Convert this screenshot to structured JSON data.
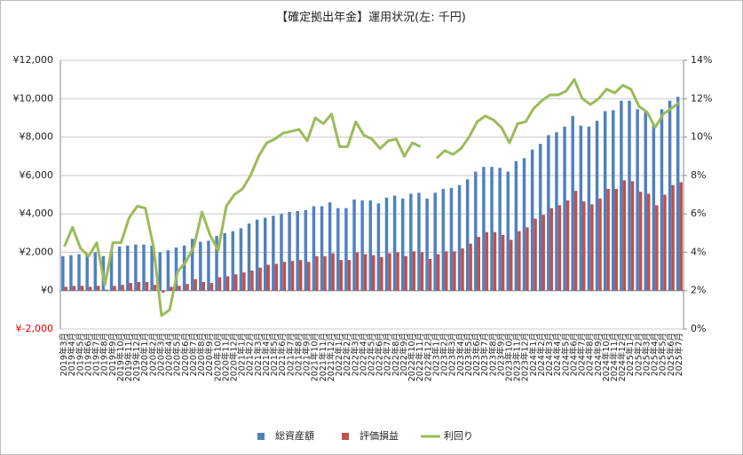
{
  "chart_data": {
    "type": "bar",
    "title": "【確定拠出年金】運用状況(左: 千円)",
    "categories": [
      "2019年3月",
      "2019年4月",
      "2019年5月",
      "2019年6月",
      "2019年7月",
      "2019年8月",
      "2019年9月",
      "2019年10月",
      "2019年11月",
      "2019年12月",
      "2020年1月",
      "2020年2月",
      "2020年3月",
      "2020年4月",
      "2020年5月",
      "2020年6月",
      "2020年7月",
      "2020年8月",
      "2020年9月",
      "2020年10月",
      "2020年11月",
      "2020年12月",
      "2021年1月",
      "2021年2月",
      "2021年3月",
      "2021年4月",
      "2021年5月",
      "2021年6月",
      "2021年7月",
      "2021年8月",
      "2021年9月",
      "2021年10月",
      "2021年11月",
      "2021年12月",
      "2022年1月",
      "2022年2月",
      "2022年3月",
      "2022年4月",
      "2022年5月",
      "2022年6月",
      "2022年7月",
      "2022年8月",
      "2022年9月",
      "2022年10月",
      "2022年11月",
      "2022年12月",
      "2023年1月",
      "2023年2月",
      "2023年3月",
      "2023年4月",
      "2023年5月",
      "2023年6月",
      "2023年7月",
      "2023年8月",
      "2023年9月",
      "2023年10月",
      "2023年11月",
      "2023年12月",
      "2024年1月",
      "2024年2月",
      "2024年3月",
      "2024年4月",
      "2024年5月",
      "2024年6月",
      "2024年7月",
      "2024年8月",
      "2024年9月",
      "2024年10月",
      "2024年11月",
      "2024年12月",
      "2025年1月",
      "2025年2月",
      "2025年3月",
      "2025年4月",
      "2025年5月",
      "2025年6月",
      "2025年7月"
    ],
    "series": [
      {
        "name": "総資産額",
        "color": "#4f81bd",
        "values": [
          1800,
          1850,
          1900,
          1900,
          2000,
          1800,
          2100,
          2300,
          2350,
          2400,
          2400,
          2350,
          2000,
          2100,
          2250,
          2350,
          2700,
          2550,
          2600,
          2850,
          3000,
          3100,
          3250,
          3500,
          3700,
          3800,
          3900,
          4000,
          4100,
          4150,
          4200,
          4400,
          4400,
          4600,
          4300,
          4300,
          4750,
          4700,
          4700,
          4550,
          4850,
          4950,
          4800,
          5050,
          5100,
          4800,
          5100,
          5300,
          5350,
          5500,
          5800,
          6200,
          6450,
          6450,
          6400,
          6200,
          6750,
          6900,
          7350,
          7650,
          8100,
          8250,
          8550,
          9100,
          8600,
          8550,
          8850,
          9350,
          9400,
          9900,
          9900,
          9450,
          9300,
          8600,
          9450,
          9900,
          10100
        ]
      },
      {
        "name": "評価損益",
        "color": "#c0504d",
        "values": [
          200,
          250,
          250,
          200,
          250,
          50,
          250,
          300,
          400,
          450,
          450,
          300,
          -100,
          200,
          250,
          350,
          600,
          450,
          400,
          700,
          750,
          850,
          950,
          1050,
          1200,
          1350,
          1400,
          1500,
          1550,
          1600,
          1500,
          1800,
          1800,
          1950,
          1600,
          1600,
          2000,
          1900,
          1850,
          1750,
          1950,
          2000,
          1800,
          2050,
          2000,
          1650,
          1900,
          2050,
          2050,
          2200,
          2450,
          2800,
          3050,
          3050,
          2900,
          2650,
          3100,
          3300,
          3750,
          3950,
          4300,
          4450,
          4700,
          5200,
          4650,
          4500,
          4800,
          5300,
          5300,
          5750,
          5700,
          5150,
          5050,
          4450,
          5000,
          5500,
          5650
        ]
      },
      {
        "name": "利回り",
        "color": "#9bbb59",
        "type": "line",
        "axis": "y2",
        "values": [
          4.3,
          5.3,
          4.2,
          3.8,
          4.5,
          2.3,
          4.5,
          4.5,
          5.8,
          6.4,
          6.3,
          4.3,
          0.7,
          1.0,
          3.0,
          3.5,
          4.3,
          6.1,
          4.9,
          4.1,
          6.4,
          7.0,
          7.3,
          8.0,
          9.0,
          9.7,
          9.9,
          10.2,
          10.3,
          10.4,
          9.8,
          11.0,
          10.7,
          11.2,
          9.5,
          9.5,
          10.8,
          10.1,
          9.9,
          9.4,
          9.8,
          9.9,
          9.0,
          9.7,
          9.5,
          null,
          8.9,
          9.3,
          9.1,
          9.4,
          10.0,
          10.8,
          11.1,
          10.9,
          10.5,
          9.7,
          10.7,
          10.8,
          11.5,
          11.9,
          12.2,
          12.2,
          12.4,
          13.0,
          12.0,
          11.7,
          12.0,
          12.5,
          12.3,
          12.7,
          12.5,
          11.6,
          11.3,
          10.5,
          11.2,
          11.5,
          11.8
        ]
      }
    ],
    "ylim": [
      -2000,
      12000
    ],
    "yticks": [
      {
        "value": -2000,
        "label": "¥-2,000"
      },
      {
        "value": 0,
        "label": "¥0"
      },
      {
        "value": 2000,
        "label": "¥2,000"
      },
      {
        "value": 4000,
        "label": "¥4,000"
      },
      {
        "value": 6000,
        "label": "¥6,000"
      },
      {
        "value": 8000,
        "label": "¥8,000"
      },
      {
        "value": 10000,
        "label": "¥10,000"
      },
      {
        "value": 12000,
        "label": "¥12,000"
      }
    ],
    "y2lim": [
      0,
      14
    ],
    "y2ticks": [
      {
        "value": 0,
        "label": "0%"
      },
      {
        "value": 2,
        "label": "2%"
      },
      {
        "value": 4,
        "label": "4%"
      },
      {
        "value": 6,
        "label": "6%"
      },
      {
        "value": 8,
        "label": "8%"
      },
      {
        "value": 10,
        "label": "10%"
      },
      {
        "value": 12,
        "label": "12%"
      },
      {
        "value": 14,
        "label": "14%"
      }
    ],
    "grid": true,
    "legend": "bottom"
  }
}
